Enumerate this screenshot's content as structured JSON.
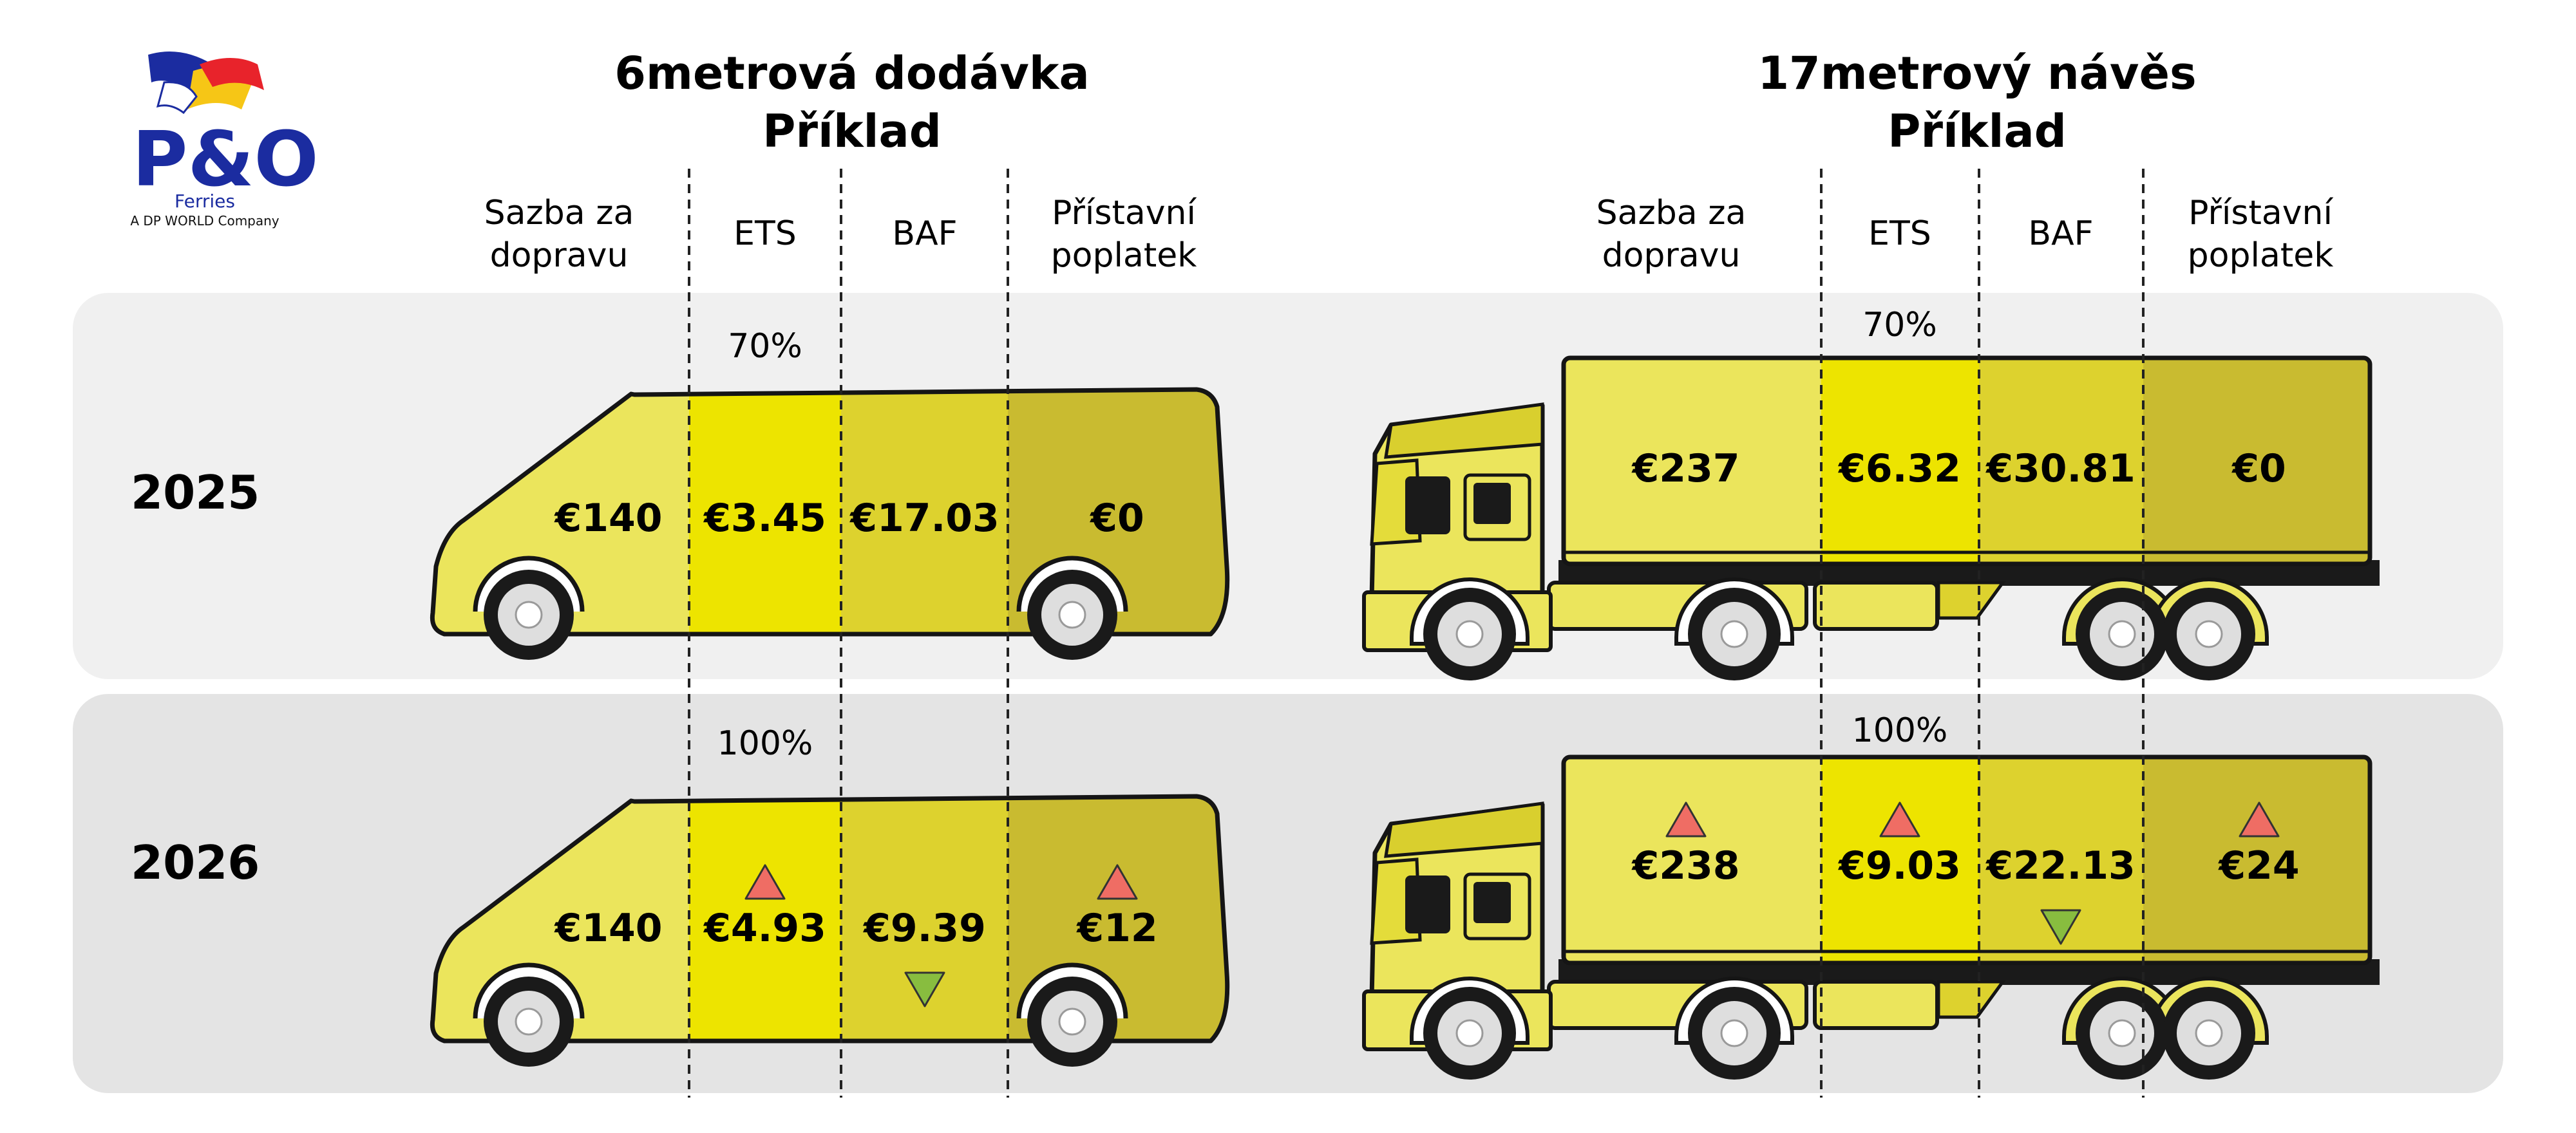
{
  "logo": {
    "name": "P&O",
    "sub": "Ferries",
    "tagline": "A DP WORLD Company"
  },
  "van": {
    "title_line1": "6metrová dodávka",
    "title_line2": "Příklad",
    "headers": [
      "Sazba za\ndopravu",
      "ETS",
      "BAF",
      "Přístavní\npoplatek"
    ]
  },
  "truck": {
    "title_line1": "17metrový návěs",
    "title_line2": "Příklad",
    "headers": [
      "Sazba za\ndopravu",
      "ETS",
      "BAF",
      "Přístavní\npoplatek"
    ]
  },
  "rows": [
    {
      "year": "2025",
      "ets_percent": "70%",
      "van": {
        "prices": [
          "€140",
          "€3.45",
          "€17.03",
          "€0"
        ],
        "trend": [
          "none",
          "none",
          "none",
          "none"
        ]
      },
      "truck": {
        "prices": [
          "€237",
          "€6.32",
          "€30.81",
          "€0"
        ],
        "trend": [
          "none",
          "none",
          "none",
          "none"
        ]
      }
    },
    {
      "year": "2026",
      "ets_percent": "100%",
      "van": {
        "prices": [
          "€140",
          "€4.93",
          "€9.39",
          "€12"
        ],
        "trend": [
          "none",
          "up",
          "down",
          "up"
        ]
      },
      "truck": {
        "prices": [
          "€238",
          "€9.03",
          "€22.13",
          "€24"
        ],
        "trend": [
          "up",
          "up",
          "down",
          "up"
        ]
      }
    }
  ],
  "colors": {
    "row_bg_2025": "#f0f0f0",
    "row_bg_2026": "#e4e4e4",
    "seg_rate": "#ebe55c",
    "seg_ets": "#ede400",
    "seg_baf": "#ddd22e",
    "seg_port": "#c9bb30",
    "outline": "#151515",
    "up_arrow": "#ef6d64",
    "down_arrow": "#88bd3f",
    "logo_blue": "#1b2ca0",
    "logo_red": "#e8232b",
    "logo_yellow": "#f6c616"
  }
}
